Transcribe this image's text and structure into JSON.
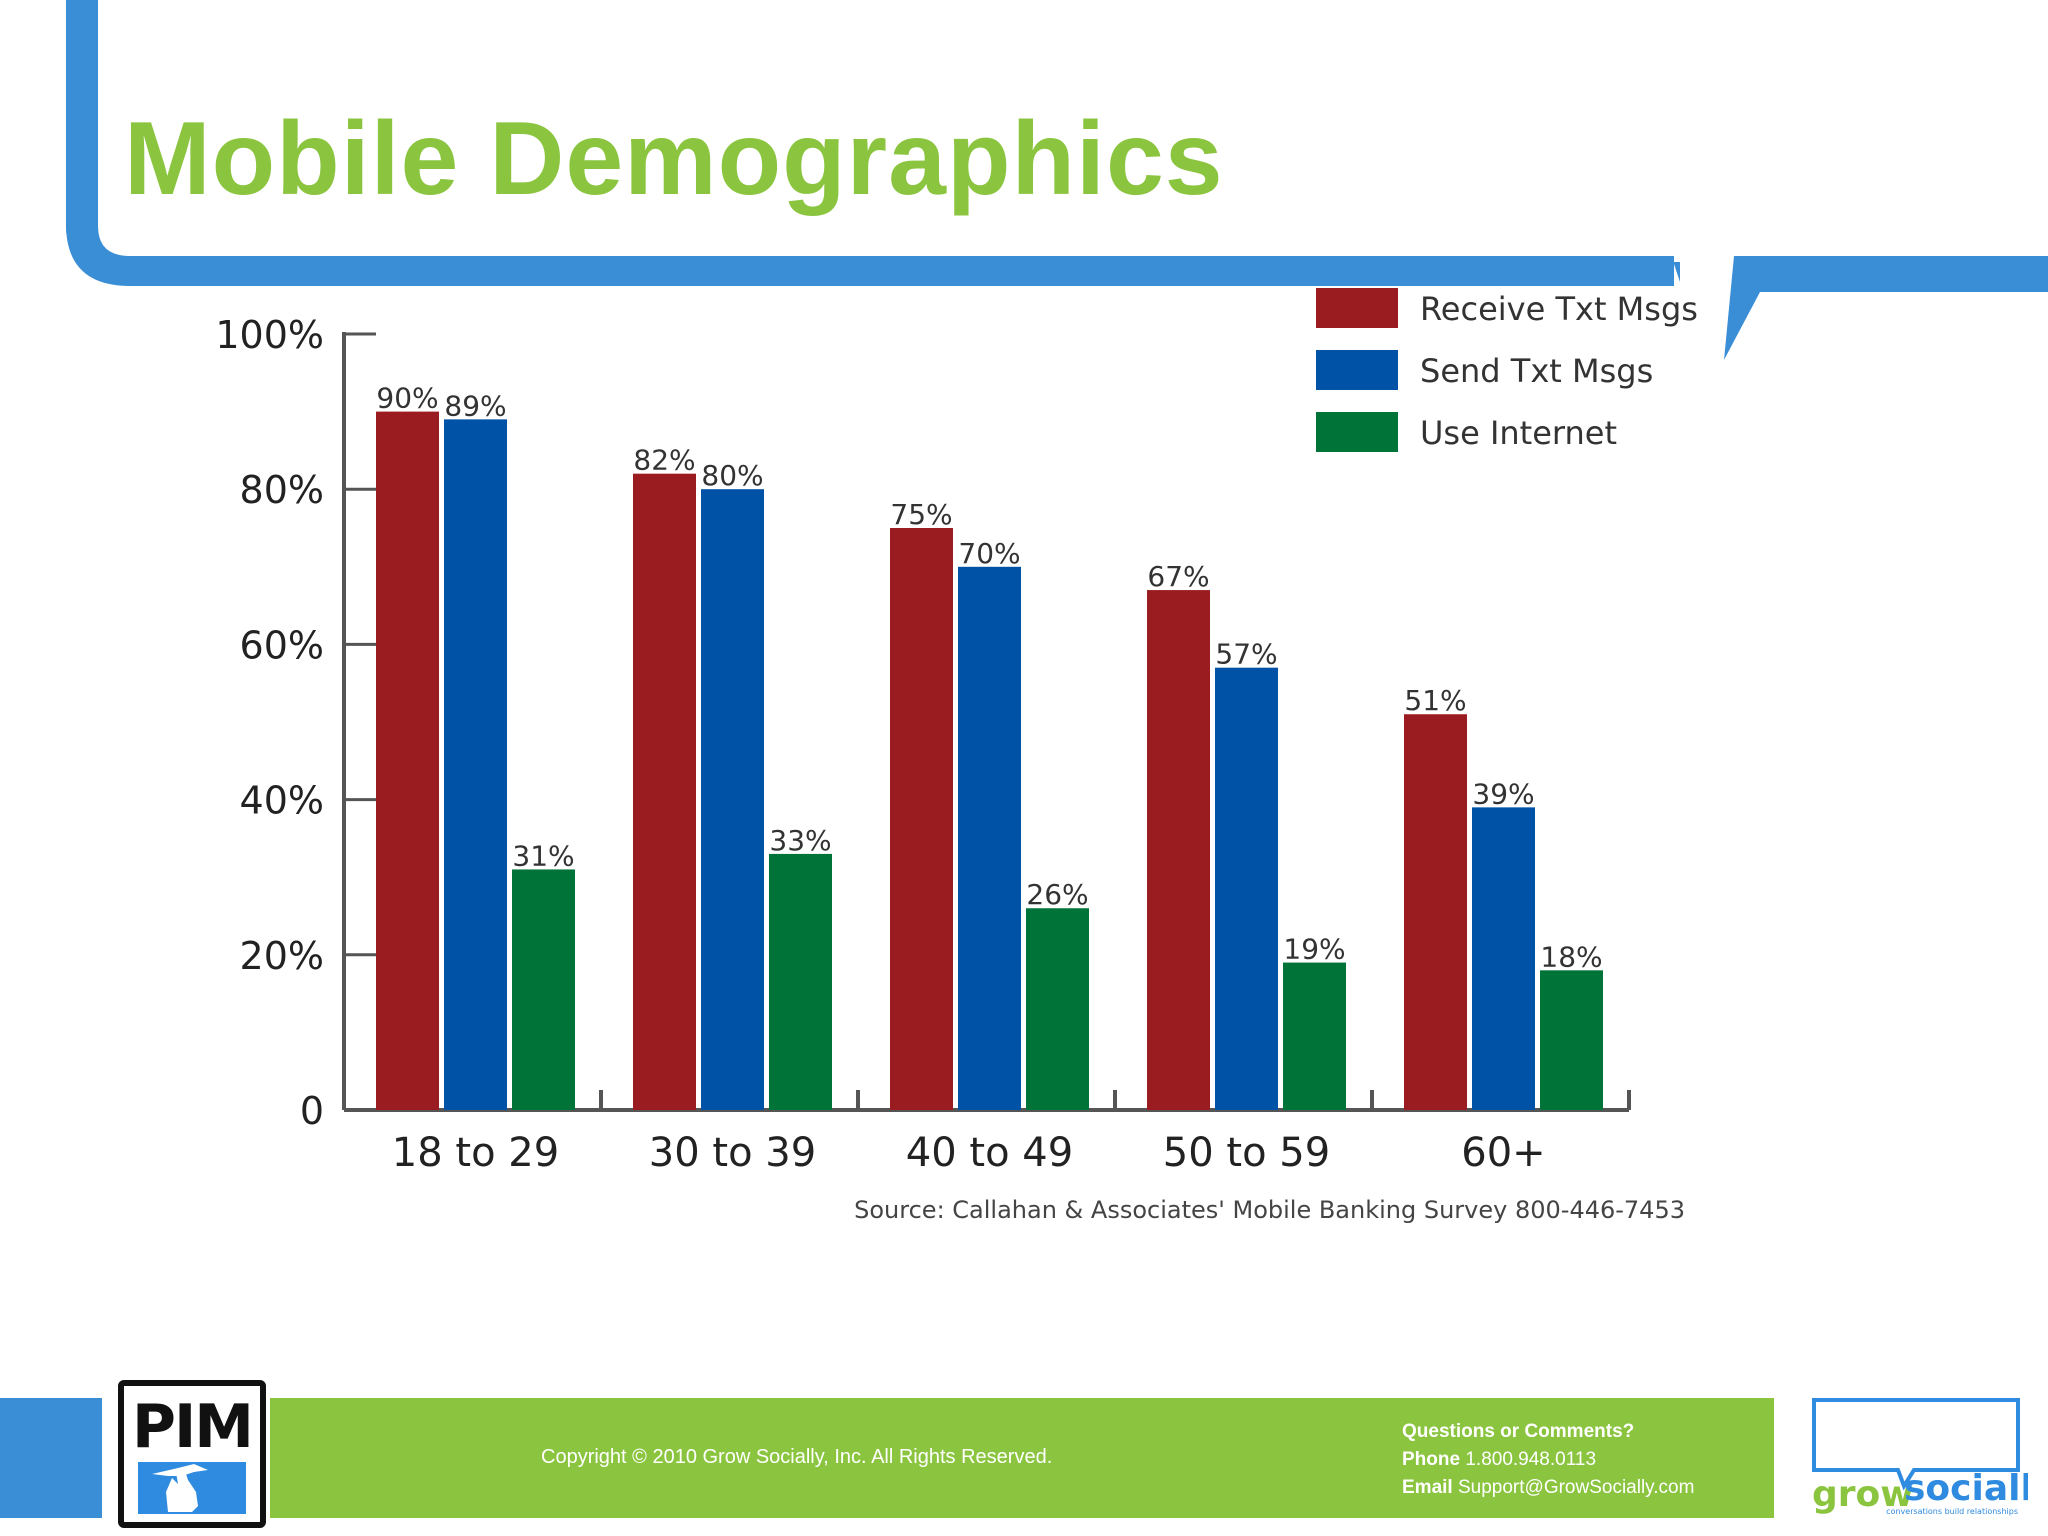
{
  "slide": {
    "title": "Mobile Demographics"
  },
  "colors": {
    "accent_green": "#8bc53f",
    "frame_blue": "#3a8ed6",
    "receive": "#9b1c20",
    "send": "#0052a6",
    "internet": "#007339"
  },
  "chart_data": {
    "type": "bar",
    "title": "Mobile Demographics",
    "categories": [
      "18 to 29",
      "30 to 39",
      "40 to 49",
      "50 to 59",
      "60+"
    ],
    "series": [
      {
        "name": "Receive Txt Msgs",
        "values": [
          90,
          82,
          75,
          67,
          51
        ],
        "labels": [
          "90%",
          "82%",
          "75%",
          "67%",
          "51%"
        ],
        "color": "#9b1c20"
      },
      {
        "name": "Send Txt Msgs",
        "values": [
          89,
          80,
          70,
          57,
          39
        ],
        "labels": [
          "89%",
          "80%",
          "70%",
          "57%",
          "39%"
        ],
        "color": "#0052a6"
      },
      {
        "name": "Use Internet",
        "values": [
          31,
          33,
          26,
          19,
          18
        ],
        "labels": [
          "31%",
          "33%",
          "26%",
          "19%",
          "18%"
        ],
        "color": "#007339"
      }
    ],
    "y_ticks": [
      0,
      20,
      40,
      60,
      80,
      100
    ],
    "y_tick_labels": [
      "0",
      "20%",
      "40%",
      "60%",
      "80%",
      "100%"
    ],
    "ylim": [
      0,
      100
    ],
    "xlabel": "",
    "ylabel": "",
    "legend_position": "top-right",
    "source": "Source: Callahan & Associates' Mobile Banking Survey 800-446-7453"
  },
  "footer": {
    "copyright": "Copyright © 2010 Grow Socially, Inc. All Rights Reserved.",
    "contact_heading": "Questions or Comments?",
    "phone_label": "Phone",
    "phone": "1.800.948.0113",
    "email_label": "Email",
    "email": "Support@GrowSocially.com"
  },
  "logos": {
    "pim_text": "PIM",
    "grow_word": "grow",
    "socially_word": "socially",
    "tagline": "conversations build relationships"
  }
}
